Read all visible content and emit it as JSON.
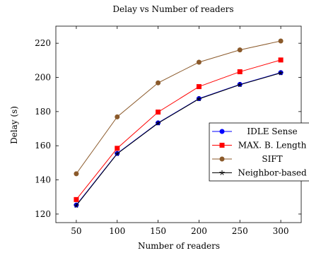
{
  "chart_data": {
    "type": "line",
    "title": "Delay vs Number of readers",
    "xlabel": "Number of readers",
    "ylabel": "Delay (s)",
    "x": [
      50,
      100,
      150,
      200,
      250,
      300
    ],
    "xlim": [
      25,
      325
    ],
    "ylim": [
      115,
      230
    ],
    "xticks": [
      50,
      100,
      150,
      200,
      250,
      300
    ],
    "yticks": [
      120,
      140,
      160,
      180,
      200,
      220
    ],
    "grid": false,
    "legend_position": "right",
    "series": [
      {
        "name": "IDLE Sense",
        "color": "#0000ff",
        "marker": "circle",
        "values": [
          125.3,
          155.5,
          173.4,
          187.6,
          195.9,
          202.8
        ]
      },
      {
        "name": "MAX. B. Length",
        "color": "#ff0000",
        "marker": "square",
        "values": [
          128.5,
          158.5,
          179.7,
          194.6,
          203.3,
          210.2
        ]
      },
      {
        "name": "SIFT",
        "color": "#8b5a2b",
        "marker": "circle",
        "values": [
          143.6,
          176.9,
          196.8,
          208.9,
          216.1,
          221.3
        ]
      },
      {
        "name": "Neighbor-based",
        "color": "#000000",
        "marker": "star",
        "values": [
          125.0,
          155.3,
          173.2,
          187.4,
          195.7,
          202.6
        ]
      }
    ]
  }
}
